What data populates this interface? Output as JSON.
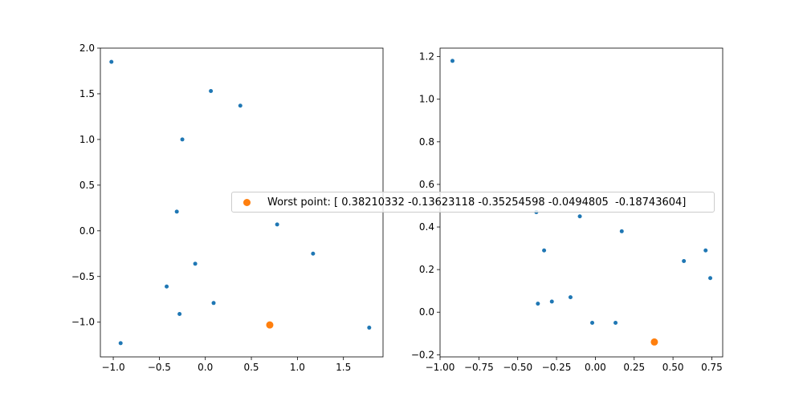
{
  "colors": {
    "points": "#1f77b4",
    "worst": "#ff7f0e",
    "axis": "#000000"
  },
  "chart_data": [
    {
      "type": "scatter",
      "title": "",
      "xlabel": "",
      "ylabel": "",
      "xlim": [
        -1.14,
        1.93
      ],
      "ylim": [
        -1.38,
        2.0
      ],
      "xticks": [
        -1.0,
        -0.5,
        0.0,
        0.5,
        1.0,
        1.5
      ],
      "xtick_labels": [
        "−1.0",
        "−0.5",
        "0.0",
        "0.5",
        "1.0",
        "1.5"
      ],
      "yticks": [
        -1.0,
        -0.5,
        0.0,
        0.5,
        1.0,
        1.5,
        2.0
      ],
      "ytick_labels": [
        "−1.0",
        "−0.5",
        "0.0",
        "0.5",
        "1.0",
        "1.5",
        "2.0"
      ],
      "points": [
        {
          "x": -1.02,
          "y": 1.85
        },
        {
          "x": 0.06,
          "y": 1.53
        },
        {
          "x": 0.38,
          "y": 1.37
        },
        {
          "x": -0.25,
          "y": 1.0
        },
        {
          "x": -0.31,
          "y": 0.21
        },
        {
          "x": 0.78,
          "y": 0.07
        },
        {
          "x": 1.17,
          "y": -0.25
        },
        {
          "x": -0.11,
          "y": -0.36
        },
        {
          "x": -0.42,
          "y": -0.61
        },
        {
          "x": 0.09,
          "y": -0.79
        },
        {
          "x": -0.28,
          "y": -0.91
        },
        {
          "x": 1.78,
          "y": -1.06
        },
        {
          "x": -0.92,
          "y": -1.23
        }
      ],
      "highlight": {
        "x": 0.7,
        "y": -1.03
      }
    },
    {
      "type": "scatter",
      "title": "",
      "xlabel": "",
      "ylabel": "",
      "xlim": [
        -1.0,
        0.82
      ],
      "ylim": [
        -0.21,
        1.24
      ],
      "xticks": [
        -1.0,
        -0.75,
        -0.5,
        -0.25,
        0.0,
        0.25,
        0.5,
        0.75
      ],
      "xtick_labels": [
        "−1.00",
        "−0.75",
        "−0.50",
        "−0.25",
        "0.00",
        "0.25",
        "0.50",
        "0.75"
      ],
      "yticks": [
        -0.2,
        0.0,
        0.2,
        0.4,
        0.6,
        0.8,
        1.0,
        1.2
      ],
      "ytick_labels": [
        "−0.2",
        "0.0",
        "0.2",
        "0.4",
        "0.6",
        "0.8",
        "1.0",
        "1.2"
      ],
      "points": [
        {
          "x": -0.92,
          "y": 1.18
        },
        {
          "x": -0.38,
          "y": 0.47
        },
        {
          "x": -0.1,
          "y": 0.45
        },
        {
          "x": 0.17,
          "y": 0.38
        },
        {
          "x": -0.33,
          "y": 0.29
        },
        {
          "x": 0.57,
          "y": 0.24
        },
        {
          "x": 0.71,
          "y": 0.29
        },
        {
          "x": 0.74,
          "y": 0.16
        },
        {
          "x": -0.37,
          "y": 0.04
        },
        {
          "x": -0.28,
          "y": 0.05
        },
        {
          "x": -0.16,
          "y": 0.07
        },
        {
          "x": -0.02,
          "y": -0.05
        },
        {
          "x": 0.13,
          "y": -0.05
        }
      ],
      "highlight": {
        "x": 0.38,
        "y": -0.14
      }
    }
  ],
  "legend": {
    "label": "Worst point: [ 0.38210332 -0.13623118 -0.35254598 -0.0494805  -0.18743604]",
    "placement": "center"
  }
}
